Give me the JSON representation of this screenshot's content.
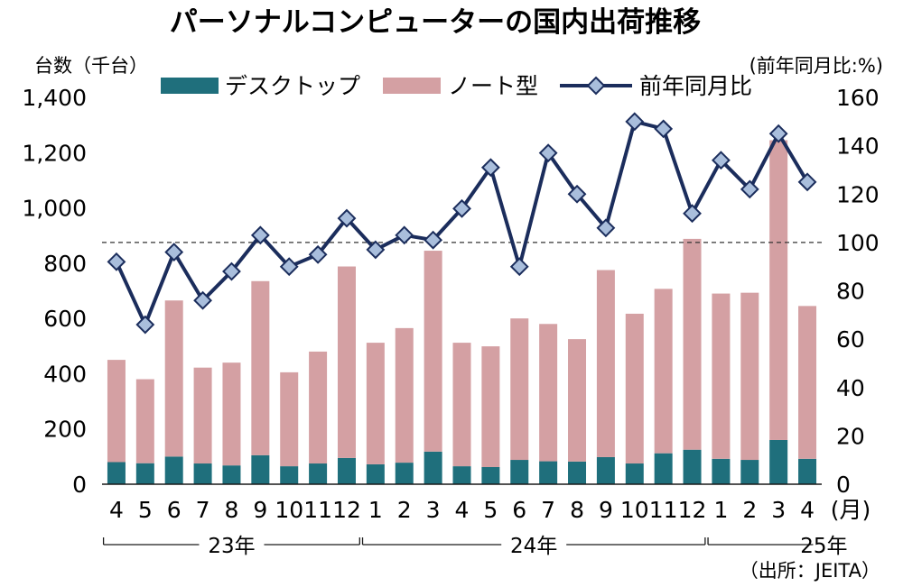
{
  "chart_data": {
    "type": "bar",
    "title": "パーソナルコンピューターの国内出荷推移",
    "left_axis_label": "台数（千台）",
    "right_axis_label": "(前年同月比:%)",
    "x_unit": "(月)",
    "source": "（出所：JEITA）",
    "categories": [
      "4",
      "5",
      "6",
      "7",
      "8",
      "9",
      "10",
      "11",
      "12",
      "1",
      "2",
      "3",
      "4",
      "5",
      "6",
      "7",
      "8",
      "9",
      "10",
      "11",
      "12",
      "1",
      "2",
      "3",
      "4"
    ],
    "years": [
      {
        "label": "23年",
        "start_index": 0,
        "end_index": 8
      },
      {
        "label": "24年",
        "start_index": 9,
        "end_index": 20
      },
      {
        "label": "25年",
        "start_index": 21,
        "end_index": 24
      }
    ],
    "series": [
      {
        "name": "デスクトップ",
        "type": "bar",
        "stack": "units",
        "axis": "left",
        "color": "#1f6f7c",
        "values": [
          80,
          76,
          100,
          75,
          68,
          105,
          65,
          75,
          95,
          72,
          78,
          118,
          65,
          62,
          88,
          83,
          82,
          98,
          75,
          112,
          125,
          92,
          88,
          160,
          92
        ]
      },
      {
        "name": "ノート型",
        "type": "bar",
        "stack": "units",
        "axis": "left",
        "color": "#d4a0a3",
        "values": [
          370,
          304,
          565,
          347,
          372,
          630,
          340,
          405,
          693,
          440,
          487,
          727,
          447,
          437,
          512,
          497,
          443,
          677,
          542,
          595,
          763,
          598,
          605,
          1085,
          553
        ]
      },
      {
        "name": "前年同月比",
        "type": "line",
        "axis": "right",
        "color": "#1b2d5c",
        "marker_color": "#a9bedc",
        "values": [
          92,
          66,
          96,
          76,
          88,
          103,
          90,
          95,
          110,
          97,
          103,
          101,
          114,
          131,
          90,
          137,
          120,
          106,
          150,
          147,
          112,
          134,
          122,
          145,
          125
        ]
      }
    ],
    "left_axis": {
      "ylim": [
        0,
        1400
      ],
      "ticks": [
        0,
        200,
        400,
        600,
        800,
        1000,
        1200,
        1400
      ],
      "tick_labels": [
        "0",
        "200",
        "400",
        "600",
        "800",
        "1,000",
        "1,200",
        "1,400"
      ]
    },
    "right_axis": {
      "ylim": [
        0,
        160
      ],
      "ticks": [
        0,
        20,
        40,
        60,
        80,
        100,
        120,
        140,
        160
      ],
      "tick_labels": [
        "0",
        "20",
        "40",
        "60",
        "80",
        "100",
        "120",
        "140",
        "160"
      ]
    },
    "reference_line": {
      "axis": "right",
      "value": 100,
      "style": "dashed"
    },
    "grid": false,
    "legend_position": "top"
  }
}
